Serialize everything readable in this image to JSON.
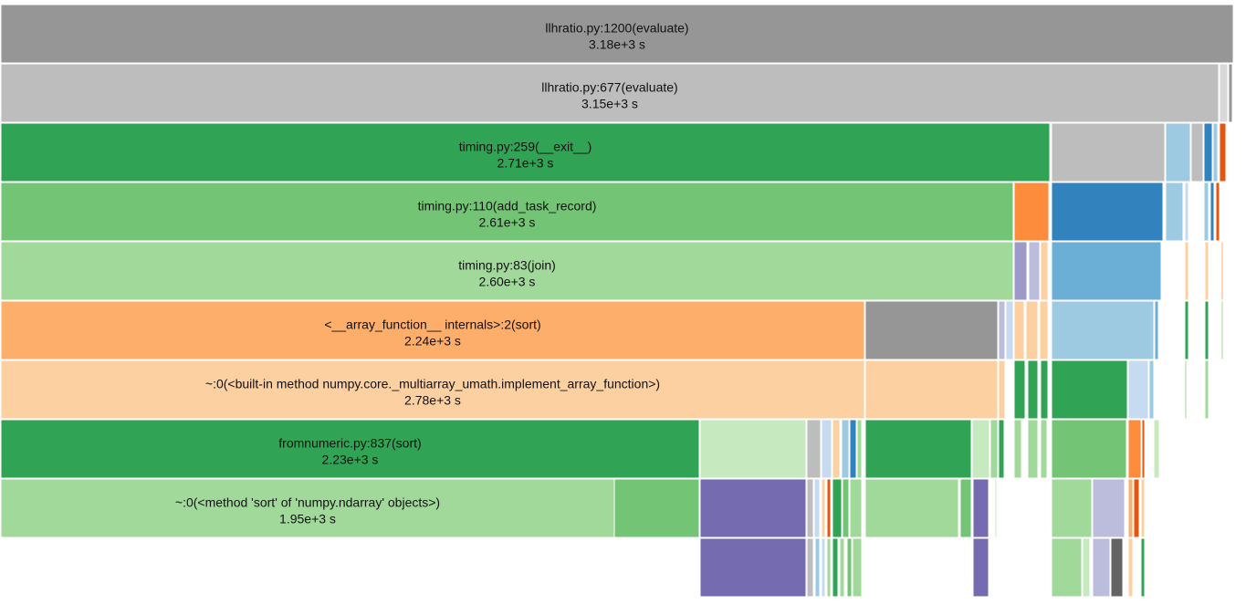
{
  "nodes": [
    {
      "label": "llhratio.py:1200(evaluate)",
      "time": "3.18e+3 s"
    },
    {
      "label": "llhratio.py:677(evaluate)",
      "time": "3.15e+3 s"
    },
    {
      "label": "timing.py:259(__exit__)",
      "time": "2.71e+3 s"
    },
    {
      "label": "timing.py:110(add_task_record)",
      "time": "2.61e+3 s"
    },
    {
      "label": "timing.py:83(join)",
      "time": "2.60e+3 s"
    },
    {
      "label": "<__array_function__ internals>:2(sort)",
      "time": "2.24e+3 s"
    },
    {
      "label": "~:0(<built-in method numpy.core._multiarray_umath.implement_array_function>)",
      "time": "2.78e+3 s"
    },
    {
      "label": "fromnumeric.py:837(sort)",
      "time": "2.23e+3 s"
    },
    {
      "label": "~:0(<method 'sort' of 'numpy.ndarray' objects>)",
      "time": "1.95e+3 s"
    }
  ]
}
